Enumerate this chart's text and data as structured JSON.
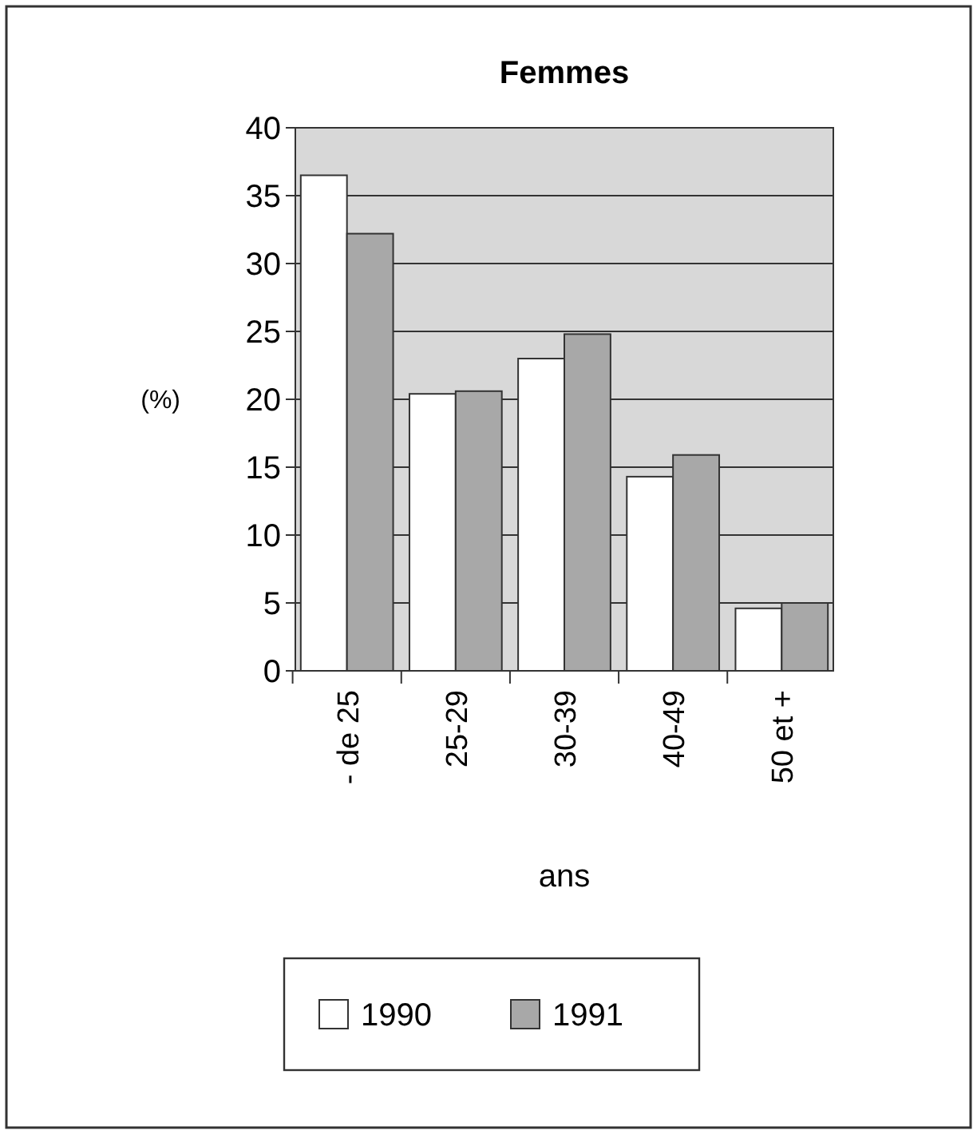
{
  "chart_data": {
    "type": "bar",
    "title": "Femmes",
    "xlabel": "ans",
    "ylabel": "(%)",
    "categories": [
      "- de 25",
      "25-29",
      "30-39",
      "40-49",
      "50 et +"
    ],
    "series": [
      {
        "name": "1990",
        "color": "#ffffff",
        "values": [
          36.5,
          20.4,
          23.0,
          14.3,
          4.6
        ]
      },
      {
        "name": "1991",
        "color": "#a8a8a8",
        "values": [
          32.2,
          20.6,
          24.8,
          15.9,
          5.0
        ]
      }
    ],
    "ylim": [
      0,
      40
    ],
    "yticks": [
      0,
      5,
      10,
      15,
      20,
      25,
      30,
      35,
      40
    ],
    "grid": "y",
    "legend": "bottom"
  }
}
